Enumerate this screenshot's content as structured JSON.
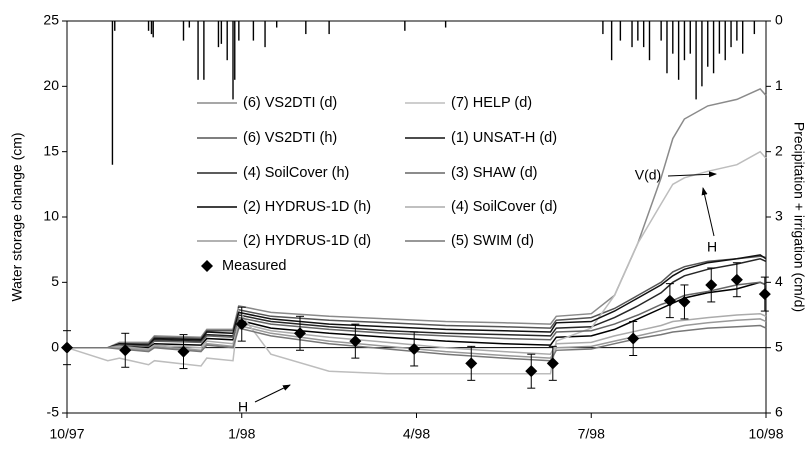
{
  "chart_data": {
    "type": "line",
    "ylabel": "Water storage change (cm)",
    "y2label": "Precipitation + irrigation (cm/d)",
    "xlim": [
      0,
      12
    ],
    "xticks": [
      {
        "value": 0,
        "label": "10/97"
      },
      {
        "value": 3,
        "label": "1/98"
      },
      {
        "value": 6,
        "label": "4/98"
      },
      {
        "value": 9,
        "label": "7/98"
      },
      {
        "value": 12,
        "label": "10/98"
      }
    ],
    "ylim": [
      -5,
      25
    ],
    "yticks": [
      -5,
      0,
      5,
      10,
      15,
      20,
      25
    ],
    "y2lim": [
      0,
      6
    ],
    "y2ticks": [
      0,
      1,
      2,
      3,
      4,
      5,
      6
    ],
    "y2_reversed": true,
    "x": [
      0,
      0.7,
      0.9,
      1.4,
      1.5,
      2.3,
      2.4,
      2.85,
      2.95,
      3.5,
      4.5,
      5.5,
      6.5,
      7.5,
      8.3,
      8.4,
      9.0,
      9.4,
      9.8,
      10.2,
      10.4,
      10.6,
      11.0,
      11.5,
      11.9,
      12
    ],
    "series": [
      {
        "name": "(6) VS2DTI (d)",
        "color": "#8a8a8a",
        "values": [
          0,
          0,
          0.4,
          0.4,
          0.9,
          0.8,
          1.4,
          1.4,
          3.2,
          2.7,
          2.4,
          2.2,
          2.0,
          1.9,
          1.8,
          2.4,
          2.6,
          4.0,
          8.0,
          13.0,
          16.0,
          17.5,
          18.5,
          19.0,
          19.8,
          19.3
        ]
      },
      {
        "name": "(6) VS2DTI (h)",
        "color": "#555555",
        "values": [
          0,
          0,
          0.3,
          0.3,
          0.8,
          0.7,
          1.3,
          1.3,
          2.9,
          2.4,
          2.1,
          1.9,
          1.7,
          1.6,
          1.5,
          2.1,
          2.3,
          3.0,
          4.0,
          5.0,
          5.8,
          6.2,
          6.6,
          6.8,
          7.0,
          6.9
        ]
      },
      {
        "name": "(4) SoilCover (h)",
        "color": "#262626",
        "values": [
          0,
          0,
          0.2,
          0.2,
          0.6,
          0.5,
          1.0,
          0.9,
          2.5,
          2.0,
          1.6,
          1.3,
          1.1,
          1.0,
          0.9,
          1.5,
          1.6,
          2.3,
          3.2,
          4.2,
          5.0,
          5.5,
          6.0,
          6.4,
          6.8,
          6.6
        ]
      },
      {
        "name": "(2) HYDRUS-1D (h)",
        "color": "#000000",
        "values": [
          0,
          0,
          0.1,
          0.0,
          0.3,
          0.2,
          0.7,
          0.6,
          2.1,
          1.5,
          1.1,
          0.8,
          0.5,
          0.3,
          0.2,
          0.8,
          0.9,
          1.4,
          2.2,
          3.0,
          3.4,
          3.8,
          4.2,
          4.5,
          5.0,
          4.8
        ]
      },
      {
        "name": "(2) HYDRUS-1D (d)",
        "color": "#999999",
        "values": [
          0,
          0,
          0.0,
          -0.2,
          0.1,
          -0.2,
          0.3,
          0.1,
          1.7,
          1.1,
          0.5,
          0.1,
          -0.3,
          -0.6,
          -0.8,
          0.0,
          0.1,
          0.5,
          0.9,
          1.3,
          1.5,
          1.7,
          1.9,
          2.1,
          2.2,
          2.0
        ]
      },
      {
        "name": "(7) HELP (d)",
        "color": "#bdbdbd",
        "values": [
          0,
          -1.0,
          -0.8,
          -1.3,
          -1.0,
          -1.4,
          -0.8,
          -1.0,
          2.8,
          -0.5,
          -1.8,
          -2.0,
          -2.0,
          -2.0,
          -2.0,
          0.5,
          1.5,
          4.0,
          8.0,
          11.0,
          12.5,
          13.0,
          13.5,
          14.0,
          15.0,
          14.5
        ]
      },
      {
        "name": "(1) UNSAT-H (d)",
        "color": "#111111",
        "values": [
          0,
          0,
          0.3,
          0.2,
          0.7,
          0.6,
          1.2,
          1.1,
          2.7,
          2.2,
          1.8,
          1.6,
          1.4,
          1.3,
          1.2,
          1.9,
          2.0,
          2.8,
          3.8,
          4.8,
          5.5,
          6.0,
          6.5,
          6.8,
          7.1,
          6.8
        ]
      },
      {
        "name": "(3) SHAW (d)",
        "color": "#666666",
        "values": [
          0,
          0,
          0.2,
          0.1,
          0.5,
          0.4,
          0.9,
          0.8,
          2.3,
          1.8,
          1.4,
          1.1,
          0.9,
          0.7,
          0.6,
          1.2,
          1.3,
          1.8,
          2.5,
          3.3,
          3.6,
          4.0,
          4.3,
          4.8,
          5.0,
          4.8
        ]
      },
      {
        "name": "(4) SoilCover (d)",
        "color": "#ababab",
        "values": [
          0,
          0,
          0.1,
          -0.1,
          0.2,
          0.0,
          0.5,
          0.3,
          1.9,
          1.3,
          0.8,
          0.4,
          0.0,
          -0.3,
          -0.5,
          0.3,
          0.4,
          0.9,
          1.3,
          1.7,
          2.0,
          2.1,
          2.3,
          2.5,
          2.6,
          2.4
        ]
      },
      {
        "name": "(5) SWIM (d)",
        "color": "#777777",
        "values": [
          0,
          0,
          -0.1,
          -0.3,
          0.0,
          -0.3,
          0.2,
          0.0,
          1.5,
          0.9,
          0.3,
          -0.1,
          -0.5,
          -0.8,
          -1.0,
          -0.2,
          -0.1,
          0.3,
          0.7,
          1.0,
          1.2,
          1.3,
          1.5,
          1.6,
          1.7,
          1.5
        ]
      }
    ],
    "measured": {
      "name": "Measured",
      "color": "#000000",
      "x": [
        0,
        1,
        2,
        3,
        4,
        4.95,
        5.96,
        6.94,
        7.97,
        8.34,
        9.72,
        10.35,
        10.6,
        11.06,
        11.5,
        11.98
      ],
      "values": [
        0,
        -0.2,
        -0.3,
        1.8,
        1.1,
        0.5,
        -0.1,
        -1.2,
        -1.8,
        -1.2,
        0.7,
        3.6,
        3.5,
        4.8,
        5.2,
        4.1
      ],
      "errors": [
        1.3,
        1.3,
        1.3,
        1.3,
        1.3,
        1.3,
        1.3,
        1.3,
        1.3,
        1.3,
        1.3,
        1.3,
        1.3,
        1.3,
        1.3,
        1.3
      ]
    },
    "precipitation": {
      "axis": "y2",
      "color": "#000000",
      "x": [
        0.78,
        0.82,
        1.4,
        1.45,
        1.48,
        2.0,
        2.1,
        2.25,
        2.35,
        2.6,
        2.65,
        2.75,
        2.85,
        2.88,
        2.95,
        3.2,
        3.4,
        3.6,
        4.1,
        4.5,
        5.8,
        6.5,
        9.2,
        9.35,
        9.5,
        9.7,
        9.8,
        9.9,
        10.0,
        10.2,
        10.3,
        10.4,
        10.5,
        10.6,
        10.7,
        10.8,
        10.9,
        11.0,
        11.1,
        11.2,
        11.3,
        11.4,
        11.5,
        11.6,
        11.8
      ],
      "values": [
        2.2,
        0.15,
        0.15,
        0.2,
        0.25,
        0.3,
        0.1,
        0.9,
        0.9,
        0.4,
        0.35,
        0.6,
        1.2,
        0.9,
        0.3,
        0.3,
        0.4,
        0.1,
        0.2,
        0.2,
        0.15,
        0.1,
        0.2,
        0.6,
        0.3,
        0.4,
        0.3,
        0.4,
        0.6,
        0.3,
        0.8,
        0.5,
        0.9,
        0.6,
        0.5,
        1.2,
        1.0,
        0.7,
        0.8,
        0.5,
        0.6,
        0.4,
        0.3,
        0.5,
        0.2
      ]
    },
    "annotations": [
      "V(d)",
      "H",
      "H"
    ]
  }
}
